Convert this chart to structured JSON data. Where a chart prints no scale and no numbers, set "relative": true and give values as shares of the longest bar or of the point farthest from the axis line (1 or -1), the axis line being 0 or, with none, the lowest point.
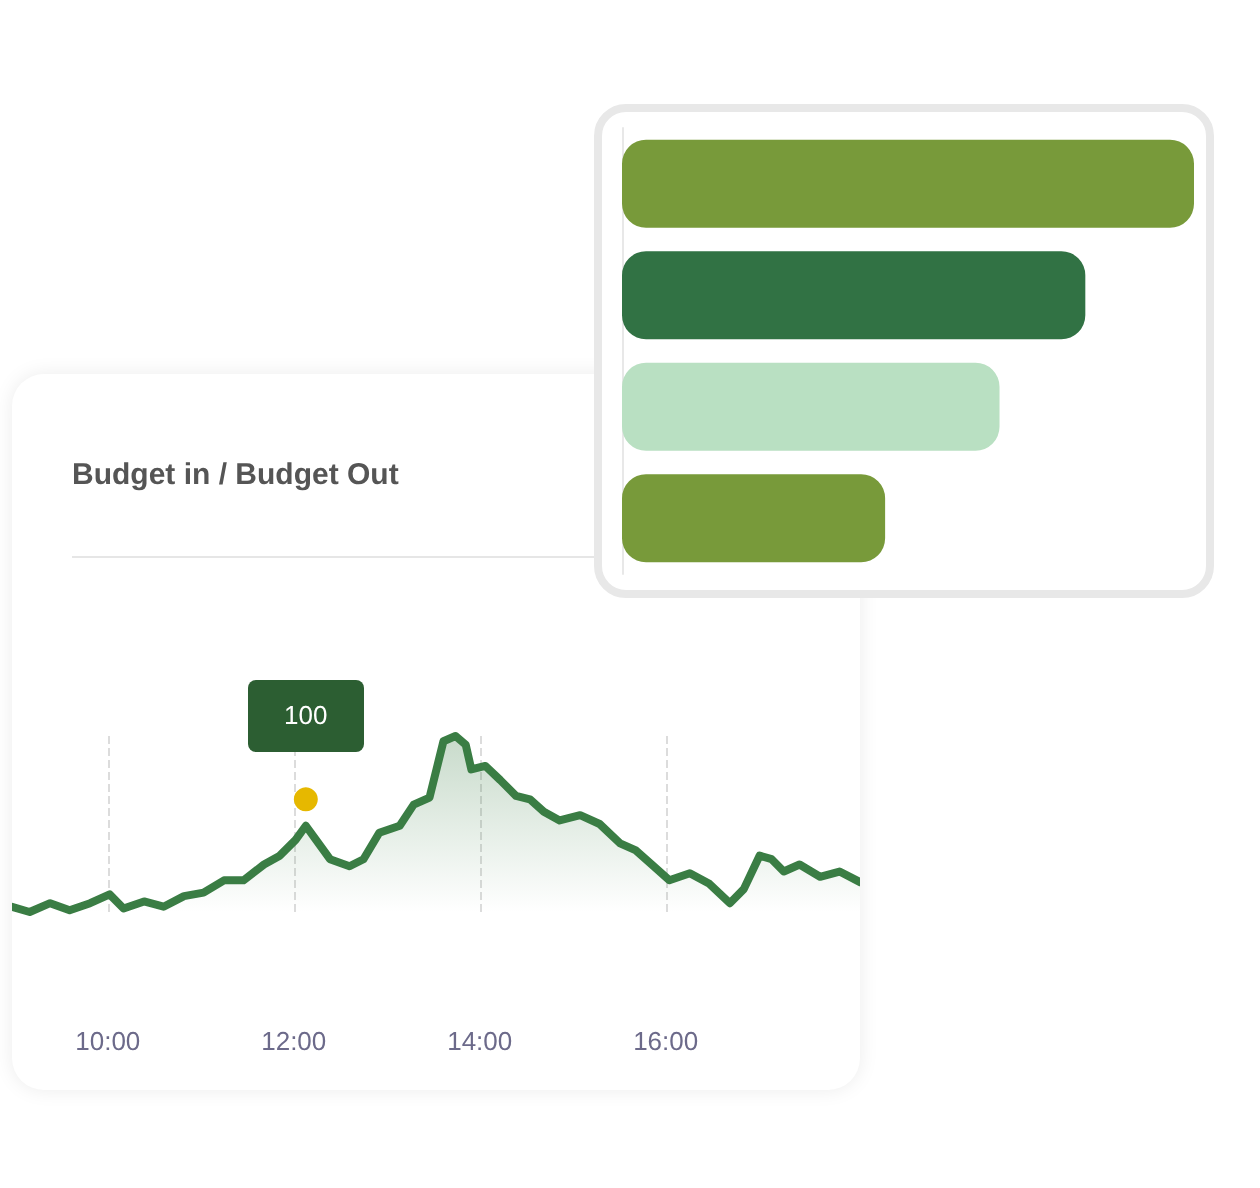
{
  "chart_data": [
    {
      "type": "area",
      "title": "Budget in / Budget Out",
      "relative": true,
      "color": "#3a7d44",
      "grid": "x",
      "x": [
        8.97,
        9.16,
        9.38,
        9.59,
        9.81,
        10.02,
        10.17,
        10.39,
        10.6,
        10.82,
        11.03,
        11.25,
        11.46,
        11.68,
        11.85,
        12.02,
        12.13,
        12.24,
        12.39,
        12.6,
        12.75,
        12.92,
        13.14,
        13.29,
        13.46,
        13.61,
        13.74,
        13.85,
        13.91,
        14.06,
        14.22,
        14.39,
        14.54,
        14.69,
        14.86,
        15.08,
        15.29,
        15.51,
        15.68,
        15.85,
        16.04,
        16.26,
        16.47,
        16.69,
        16.84,
        17.01,
        17.14,
        17.27,
        17.44,
        17.66,
        17.87,
        18.09
      ],
      "values": [
        0.03,
        0,
        0.05,
        0.01,
        0.05,
        0.1,
        0.02,
        0.06,
        0.03,
        0.09,
        0.11,
        0.18,
        0.18,
        0.27,
        0.32,
        0.41,
        0.49,
        0.41,
        0.3,
        0.26,
        0.3,
        0.45,
        0.49,
        0.61,
        0.65,
        0.97,
        1,
        0.95,
        0.81,
        0.83,
        0.75,
        0.66,
        0.64,
        0.57,
        0.52,
        0.55,
        0.5,
        0.39,
        0.35,
        0.27,
        0.18,
        0.22,
        0.16,
        0.05,
        0.13,
        0.32,
        0.3,
        0.23,
        0.27,
        0.2,
        0.23,
        0.17
      ],
      "xlim": [
        8.97,
        18.09
      ],
      "xticks": [
        {
          "value": 10,
          "label": "10:00"
        },
        {
          "value": 12,
          "label": "12:00"
        },
        {
          "value": 14,
          "label": "14:00"
        },
        {
          "value": 16,
          "label": "16:00"
        }
      ],
      "annotations": [
        {
          "text": "100",
          "x": 12.13,
          "y": 0.64
        }
      ]
    },
    {
      "type": "bar",
      "orientation": "horizontal",
      "relative": true,
      "categories": [
        null,
        null,
        null,
        null
      ],
      "values": [
        1,
        0.81,
        0.66,
        0.46
      ],
      "colors": [
        "#789a3a",
        "#317244",
        "#b9e0c2",
        "#789a3a"
      ]
    }
  ]
}
